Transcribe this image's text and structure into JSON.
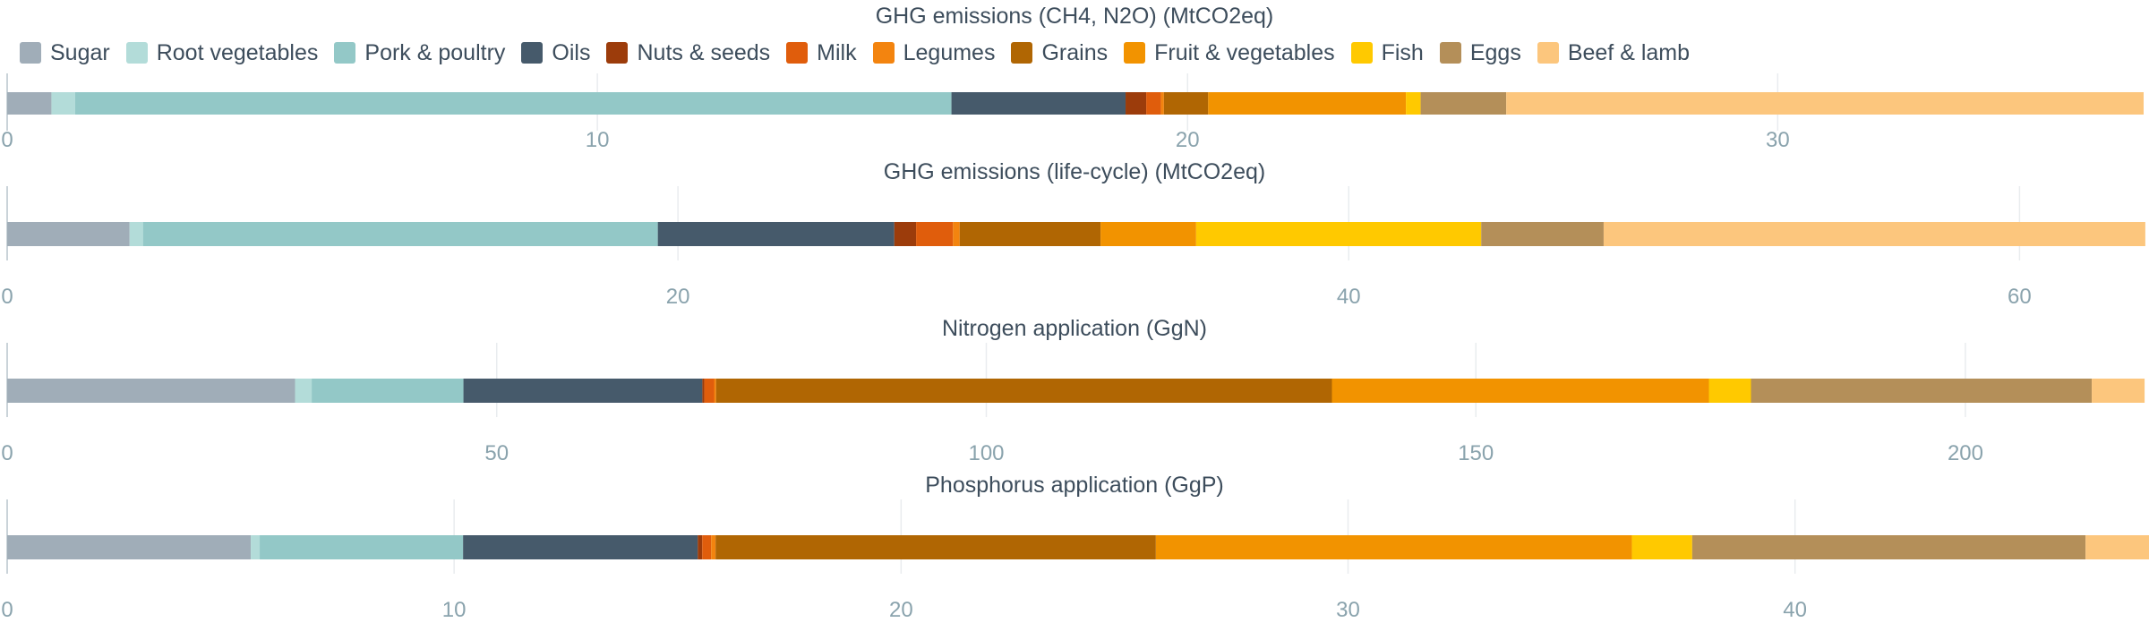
{
  "chart_data": {
    "type": "bar",
    "orientation": "horizontal",
    "stacked": true,
    "legend_position": "top",
    "grid": true,
    "series_names": [
      "Sugar",
      "Root vegetables",
      "Pork & poultry",
      "Oils",
      "Nuts & seeds",
      "Milk",
      "Legumes",
      "Grains",
      "Fruit & vegetables",
      "Fish",
      "Eggs",
      "Beef & lamb"
    ],
    "colors": [
      "#a0adb8",
      "#b3dcd9",
      "#93c8c7",
      "#465a6b",
      "#9c3c0b",
      "#e05d0c",
      "#f3840f",
      "#b06603",
      "#f29300",
      "#ffc900",
      "#b48f59",
      "#fcc67d"
    ],
    "panels": [
      {
        "title": "GHG emissions (CH4, N2O) (MtCO2eq)",
        "xlim": [
          0,
          36.2
        ],
        "xticks": [
          0,
          10,
          20,
          30
        ],
        "values": [
          0.75,
          0.4,
          14.85,
          2.95,
          0.35,
          0.25,
          0.05,
          0.75,
          3.35,
          0.25,
          1.45,
          10.8
        ]
      },
      {
        "title": "GHG emissions (life-cycle) (MtCO2eq)",
        "xlim": [
          0,
          63.7
        ],
        "xticks": [
          0,
          20,
          40,
          60
        ],
        "values": [
          3.65,
          0.4,
          15.35,
          7.05,
          0.65,
          1.1,
          0.2,
          4.2,
          2.85,
          8.5,
          3.65,
          16.15
        ]
      },
      {
        "title": "Nitrogen application (GgN)",
        "xlim": [
          0,
          218.2
        ],
        "xticks": [
          0,
          50,
          100,
          150,
          200
        ],
        "values": [
          29.4,
          1.7,
          15.5,
          24.4,
          0.2,
          1.0,
          0.2,
          62.9,
          38.5,
          4.3,
          34.8,
          5.4
        ]
      },
      {
        "title": "Phosphorus application (GgP)",
        "xlim": [
          0,
          47.8
        ],
        "xticks": [
          0,
          10,
          20,
          30,
          40
        ],
        "values": [
          5.45,
          0.2,
          4.55,
          5.25,
          0.1,
          0.2,
          0.1,
          9.85,
          10.65,
          1.35,
          8.8,
          1.5
        ]
      }
    ]
  }
}
